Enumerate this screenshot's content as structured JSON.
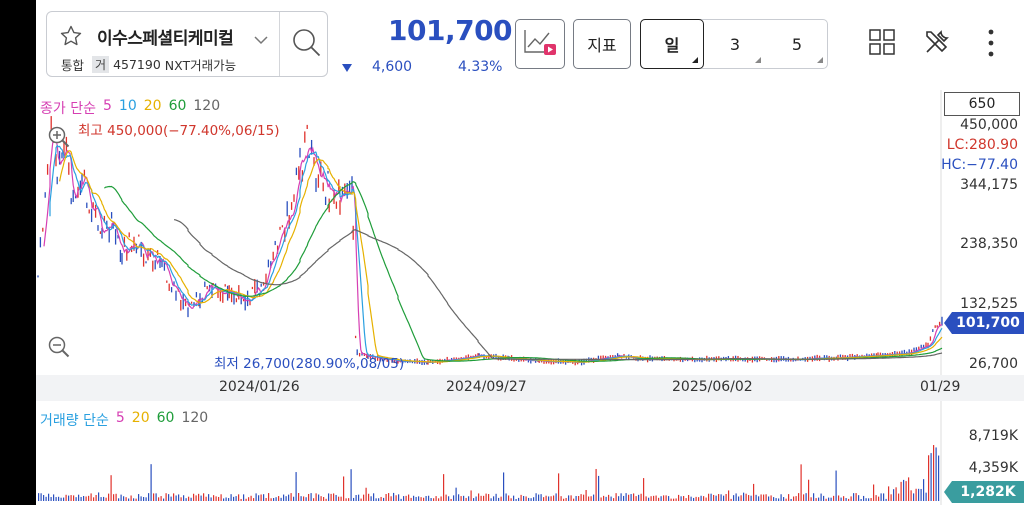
{
  "stock": {
    "name": "이수스페셜티케미컬",
    "market_tag": "통합",
    "trade_tag": "거",
    "code": "457190",
    "nxt_text": "NXT거래가능"
  },
  "quote": {
    "price": "101,700",
    "change": "4,600",
    "change_pct": "4.33%",
    "direction": "down",
    "color": "#2a4fbf"
  },
  "toolbar": {
    "chart_type_icon": "line-chart-play-icon",
    "indicator_label": "지표",
    "periods": [
      {
        "label": "일",
        "active": true
      },
      {
        "label": "3",
        "active": false
      },
      {
        "label": "5",
        "active": false
      }
    ],
    "icons": [
      "grid-icon",
      "tools-icon",
      "more-vertical-icon"
    ]
  },
  "price_chart": {
    "legend": {
      "title": "종가 단순",
      "items": [
        {
          "label": "5",
          "color": "#d63fb3"
        },
        {
          "label": "10",
          "color": "#2aa0e0"
        },
        {
          "label": "20",
          "color": "#e6b100"
        },
        {
          "label": "60",
          "color": "#1f9d3a"
        },
        {
          "label": "120",
          "color": "#666666"
        }
      ]
    },
    "high_annotation": "최고 450,000(−77.40%,06/15)",
    "low_annotation": "최저 26,700(280.90%,08/05)",
    "scale_box": "650",
    "y_axis": [
      "450,000",
      "344,175",
      "238,350",
      "132,525",
      "26,700"
    ],
    "lc": "LC:280.90",
    "hc": "HC:−77.40",
    "current_tag": "101,700",
    "x_axis": [
      "2024/01/26",
      "2024/09/27",
      "2025/06/02",
      "01/29"
    ]
  },
  "volume_chart": {
    "legend": {
      "title": "거래량 단순",
      "items": [
        {
          "label": "5",
          "color": "#d63fb3"
        },
        {
          "label": "20",
          "color": "#e6b100"
        },
        {
          "label": "60",
          "color": "#1f9d3a"
        },
        {
          "label": "120",
          "color": "#666666"
        }
      ]
    },
    "y_axis": [
      "8,719K",
      "4,359K"
    ],
    "current_tag": "1,282K"
  }
}
